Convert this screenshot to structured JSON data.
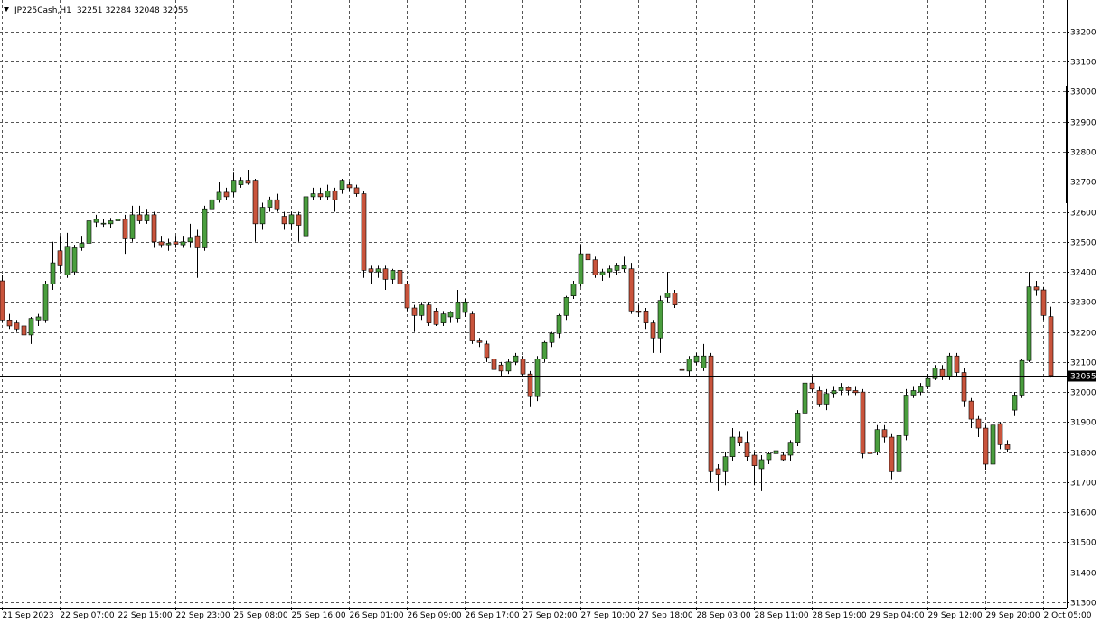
{
  "chart_data": {
    "type": "candlestick",
    "symbol": "JP225Cash,H1",
    "up_color": "#4a9e3e",
    "down_color": "#c9543c",
    "grid": true,
    "ylim": [
      31282,
      33305
    ],
    "yticks": [
      31300,
      31400,
      31500,
      31600,
      31700,
      31800,
      31900,
      32000,
      32100,
      32200,
      32300,
      32400,
      32500,
      32600,
      32700,
      32800,
      32900,
      33000,
      33100,
      33200
    ],
    "categories": [
      "21 Sep 2023",
      null,
      null,
      null,
      null,
      null,
      null,
      null,
      "22 Sep 07:00",
      null,
      null,
      null,
      null,
      null,
      null,
      null,
      "22 Sep 15:00",
      null,
      null,
      null,
      null,
      null,
      null,
      null,
      "22 Sep 23:00",
      null,
      null,
      null,
      null,
      null,
      null,
      null,
      "25 Sep 08:00",
      null,
      null,
      null,
      null,
      null,
      null,
      null,
      "25 Sep 16:00",
      null,
      null,
      null,
      null,
      null,
      null,
      null,
      "26 Sep 01:00",
      null,
      null,
      null,
      null,
      null,
      null,
      null,
      "26 Sep 09:00",
      null,
      null,
      null,
      null,
      null,
      null,
      null,
      "26 Sep 17:00",
      null,
      null,
      null,
      null,
      null,
      null,
      null,
      "27 Sep 02:00",
      null,
      null,
      null,
      null,
      null,
      null,
      null,
      "27 Sep 10:00",
      null,
      null,
      null,
      null,
      null,
      null,
      null,
      "27 Sep 18:00",
      null,
      null,
      null,
      null,
      null,
      null,
      null,
      "28 Sep 03:00",
      null,
      null,
      null,
      null,
      null,
      null,
      null,
      "28 Sep 11:00",
      null,
      null,
      null,
      null,
      null,
      null,
      null,
      "28 Sep 19:00",
      null,
      null,
      null,
      null,
      null,
      null,
      null,
      "29 Sep 04:00",
      null,
      null,
      null,
      null,
      null,
      null,
      null,
      "29 Sep 12:00",
      null,
      null,
      null,
      null,
      null,
      null,
      null,
      "29 Sep 20:00",
      null,
      null,
      null,
      null,
      null,
      null,
      null,
      "2 Oct 05:00",
      null
    ],
    "open": [
      32370,
      32240,
      32230,
      32220,
      32190,
      32240,
      32240,
      32360,
      32470,
      32390,
      32400,
      32480,
      32495,
      32565,
      32560,
      32560,
      32570,
      32575,
      32510,
      32590,
      32570,
      32590,
      32500,
      32490,
      32500,
      32490,
      32500,
      32520,
      32480,
      32610,
      32640,
      32665,
      32665,
      32690,
      32705,
      32705,
      32560,
      32615,
      32640,
      32585,
      32560,
      32590,
      32520,
      32650,
      32660,
      32650,
      32670,
      32675,
      32690,
      32680,
      32660,
      32410,
      32400,
      32410,
      32375,
      32405,
      32360,
      32280,
      32255,
      32290,
      32270,
      32230,
      32250,
      32245,
      32265,
      32260,
      32170,
      32160,
      32110,
      32090,
      32070,
      32100,
      32110,
      32060,
      31985,
      32110,
      32165,
      32195,
      32255,
      32320,
      32360,
      32460,
      32440,
      32390,
      32400,
      32405,
      32410,
      32410,
      32270,
      32270,
      32230,
      32180,
      32315,
      32330,
      32075,
      32070,
      32100,
      32080,
      32120,
      31745,
      31735,
      31785,
      31850,
      31830,
      31790,
      31745,
      31775,
      31795,
      31790,
      31790,
      31830,
      31930,
      32030,
      32005,
      31960,
      31995,
      32005,
      32015,
      32005,
      32000,
      31800,
      31800,
      31875,
      31850,
      31735,
      31855,
      31990,
      32000,
      32020,
      32045,
      32075,
      32050,
      32120,
      32065,
      31970,
      31910,
      31880,
      31760,
      31895,
      31825,
      31940,
      31990,
      32105,
      32350,
      32340,
      32251
    ],
    "high": [
      32390,
      32260,
      32240,
      32230,
      32250,
      32260,
      32370,
      32500,
      32520,
      32530,
      32490,
      32520,
      32600,
      32590,
      32575,
      32580,
      32590,
      32590,
      32620,
      32620,
      32610,
      32600,
      32520,
      32510,
      32520,
      32520,
      32560,
      32540,
      32620,
      32650,
      32700,
      32680,
      32730,
      32715,
      32740,
      32710,
      32630,
      32650,
      32660,
      32600,
      32600,
      32600,
      32660,
      32680,
      32680,
      32690,
      32680,
      32710,
      32700,
      32690,
      32670,
      32420,
      32420,
      32420,
      32410,
      32410,
      32370,
      32290,
      32300,
      32300,
      32280,
      32270,
      32270,
      32340,
      32310,
      32270,
      32180,
      32170,
      32120,
      32100,
      32110,
      32130,
      32120,
      32070,
      32120,
      32170,
      32200,
      32260,
      32320,
      32370,
      32490,
      32480,
      32450,
      32410,
      32420,
      32430,
      32450,
      32430,
      32290,
      32280,
      32240,
      32320,
      32400,
      32340,
      32080,
      32120,
      32130,
      32160,
      32130,
      31760,
      31800,
      31880,
      31870,
      31870,
      31800,
      31790,
      31800,
      31810,
      31800,
      31840,
      31940,
      32060,
      32050,
      32020,
      32010,
      32020,
      32030,
      32020,
      32020,
      32010,
      31810,
      31890,
      31890,
      31860,
      31870,
      32010,
      32020,
      32030,
      32060,
      32090,
      32090,
      32130,
      32130,
      32080,
      31980,
      31920,
      31890,
      31900,
      31900,
      31840,
      32000,
      32110,
      32400,
      32370,
      32350,
      32284
    ],
    "low": [
      32230,
      32210,
      32200,
      32170,
      32160,
      32220,
      32230,
      32340,
      32400,
      32380,
      32390,
      32470,
      32480,
      32550,
      32550,
      32545,
      32560,
      32460,
      32500,
      32560,
      32560,
      32480,
      32480,
      32470,
      32480,
      32480,
      32480,
      32380,
      32470,
      32600,
      32630,
      32640,
      32650,
      32680,
      32690,
      32500,
      32540,
      32600,
      32600,
      32540,
      32540,
      32500,
      32500,
      32640,
      32640,
      32640,
      32600,
      32660,
      32670,
      32650,
      32380,
      32360,
      32380,
      32340,
      32360,
      32320,
      32270,
      32200,
      32240,
      32220,
      32220,
      32220,
      32230,
      32230,
      32250,
      32160,
      32150,
      32100,
      32060,
      32050,
      32060,
      32090,
      32050,
      31950,
      31970,
      32100,
      32150,
      32180,
      32240,
      32310,
      32350,
      32430,
      32380,
      32370,
      32380,
      32390,
      32400,
      32260,
      32250,
      32210,
      32130,
      32130,
      32300,
      32280,
      32060,
      32050,
      32090,
      32070,
      31700,
      31670,
      31690,
      31770,
      31820,
      31770,
      31690,
      31670,
      31760,
      31770,
      31770,
      31770,
      31820,
      31920,
      32000,
      31950,
      31940,
      31980,
      31990,
      31990,
      31990,
      31780,
      31760,
      31790,
      31830,
      31710,
      31700,
      31840,
      31980,
      31990,
      32010,
      32040,
      32040,
      32040,
      32050,
      31950,
      31880,
      31850,
      31740,
      31750,
      31810,
      31800,
      31920,
      31980,
      32100,
      32320,
      32240,
      32048
    ],
    "close": [
      32240,
      32220,
      32210,
      32190,
      32245,
      32250,
      32360,
      32430,
      32420,
      32485,
      32480,
      32495,
      32570,
      32575,
      32562,
      32570,
      32575,
      32510,
      32590,
      32570,
      32590,
      32500,
      32490,
      32495,
      32492,
      32500,
      32512,
      32480,
      32610,
      32640,
      32665,
      32650,
      32705,
      32705,
      32695,
      32560,
      32615,
      32640,
      32610,
      32560,
      32590,
      32555,
      32650,
      32660,
      32650,
      32670,
      32640,
      32705,
      32680,
      32660,
      32405,
      32400,
      32410,
      32375,
      32405,
      32360,
      32280,
      32255,
      32290,
      32230,
      32225,
      32260,
      32265,
      32300,
      32300,
      32170,
      32165,
      32115,
      32075,
      32070,
      32100,
      32120,
      32060,
      31985,
      32110,
      32165,
      32195,
      32255,
      32315,
      32360,
      32460,
      32440,
      32390,
      32400,
      32410,
      32420,
      32420,
      32270,
      32265,
      32230,
      32180,
      32305,
      32330,
      32290,
      32073,
      32110,
      32120,
      32120,
      31735,
      31725,
      31785,
      31850,
      31830,
      31785,
      31755,
      31775,
      31795,
      31805,
      31775,
      31830,
      31930,
      32030,
      32010,
      31960,
      31995,
      32005,
      32015,
      32005,
      31998,
      31795,
      31795,
      31875,
      31850,
      31735,
      31855,
      31990,
      32005,
      32020,
      32045,
      32080,
      32050,
      32120,
      32065,
      31970,
      31910,
      31880,
      31760,
      31890,
      31825,
      31810,
      31990,
      32105,
      32350,
      32340,
      32255,
      32055
    ]
  }
}
